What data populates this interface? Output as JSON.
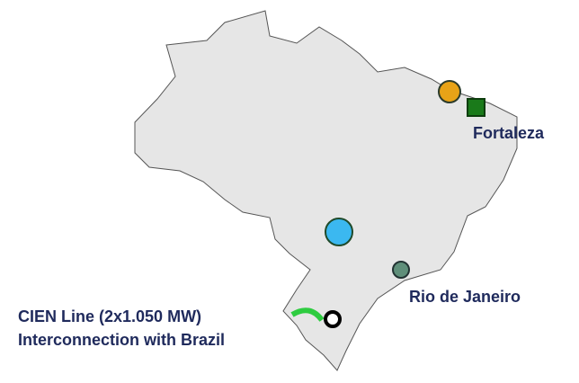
{
  "labels": {
    "fortaleza": "Fortaleza",
    "rio": "Rio de Janeiro",
    "cien_line": "CIEN  Line (2x1.050 MW)",
    "cien_interconnection": "Interconnection with Brazil"
  }
}
